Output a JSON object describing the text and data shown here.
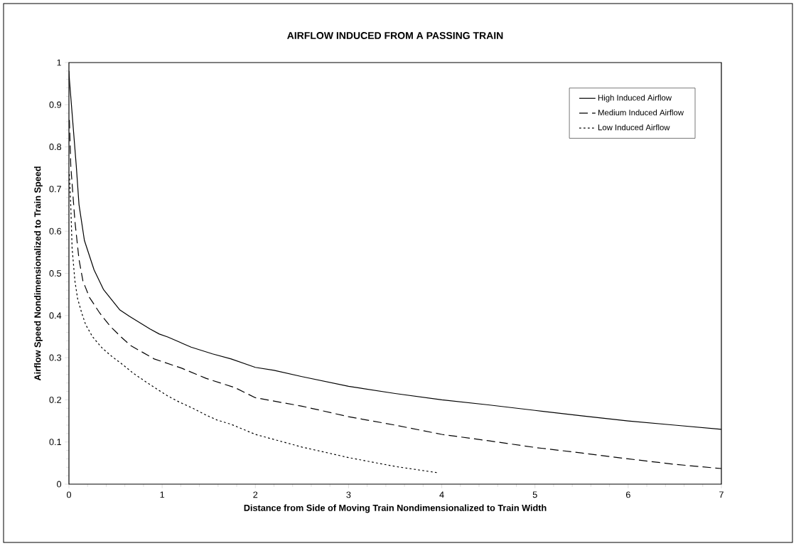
{
  "chart_data": {
    "type": "line",
    "title": "AIRFLOW INDUCED FROM A PASSING TRAIN",
    "xlabel": "Distance from Side of Moving Train Nondimensionalized to Train Width",
    "ylabel": "Airflow Speed Nondimensionalized to Train Speed",
    "xlim": [
      0,
      7
    ],
    "ylim": [
      0,
      1
    ],
    "xticks": [
      0,
      1,
      2,
      3,
      4,
      5,
      6,
      7
    ],
    "yticks": [
      0,
      0.1,
      0.2,
      0.3,
      0.4,
      0.5,
      0.6,
      0.7,
      0.8,
      0.9,
      1
    ],
    "grid": false,
    "legend": "top right",
    "marker": "none",
    "series": [
      {
        "name": "High Induced Airflow",
        "color": "#000000",
        "line_style": "solid",
        "x": [
          0,
          0.005,
          0.079,
          0.108,
          0.166,
          0.27,
          0.37,
          0.547,
          0.65,
          0.87,
          0.97,
          1.06,
          1.31,
          1.54,
          1.74,
          2,
          2.2,
          2.5,
          3,
          3.5,
          4,
          4.5,
          5,
          5.5,
          6,
          6.5,
          7
        ],
        "values": [
          0.98,
          0.96,
          0.754,
          0.663,
          0.578,
          0.508,
          0.462,
          0.413,
          0.398,
          0.368,
          0.356,
          0.349,
          0.325,
          0.309,
          0.297,
          0.277,
          0.27,
          0.255,
          0.232,
          0.215,
          0.2,
          0.188,
          0.175,
          0.162,
          0.15,
          0.14,
          0.13
        ]
      },
      {
        "name": "Medium Induced Airflow",
        "color": "#000000",
        "line_style": "dashed",
        "x": [
          0.005,
          0.02,
          0.064,
          0.108,
          0.15,
          0.22,
          0.33,
          0.445,
          0.56,
          0.66,
          0.915,
          1.21,
          1.47,
          1.78,
          2,
          2.5,
          3,
          3.5,
          4,
          4.5,
          5,
          5.5,
          6,
          6.5,
          7
        ],
        "values": [
          0.864,
          0.754,
          0.624,
          0.533,
          0.482,
          0.443,
          0.406,
          0.374,
          0.349,
          0.329,
          0.297,
          0.275,
          0.251,
          0.229,
          0.205,
          0.185,
          0.16,
          0.14,
          0.118,
          0.103,
          0.087,
          0.074,
          0.06,
          0.047,
          0.037
        ]
      },
      {
        "name": "Low Induced Airflow",
        "color": "#000000",
        "line_style": "dotted",
        "x": [
          0.005,
          0.02,
          0.034,
          0.064,
          0.093,
          0.137,
          0.18,
          0.255,
          0.36,
          0.46,
          0.58,
          0.69,
          0.81,
          0.94,
          1.06,
          1.19,
          1.33,
          1.46,
          1.59,
          1.74,
          2,
          2.5,
          3,
          3.5,
          3.96
        ],
        "values": [
          0.735,
          0.658,
          0.56,
          0.482,
          0.44,
          0.406,
          0.378,
          0.349,
          0.322,
          0.303,
          0.283,
          0.263,
          0.245,
          0.226,
          0.209,
          0.194,
          0.18,
          0.165,
          0.152,
          0.142,
          0.118,
          0.088,
          0.063,
          0.042,
          0.027
        ]
      }
    ]
  }
}
